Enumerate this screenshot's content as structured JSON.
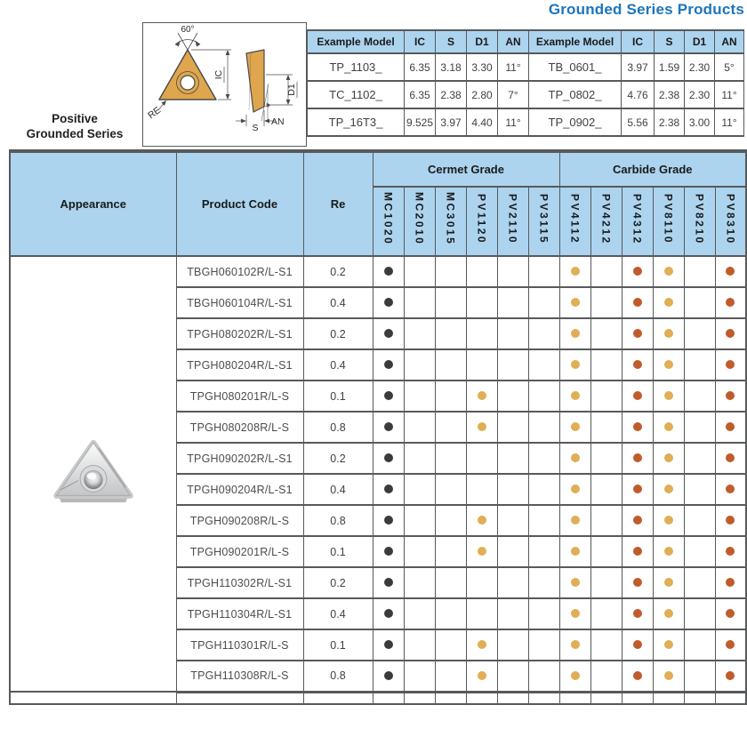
{
  "page": {
    "title": "Grounded Series Products"
  },
  "series_label": {
    "line1": "Positive",
    "line2": "Grounded Series"
  },
  "diagram": {
    "labels": {
      "angle": "60°",
      "ic": "IC",
      "re": "RE",
      "s": "S",
      "an": "AN",
      "d1": "D1"
    }
  },
  "example_tables": {
    "left": {
      "headers": [
        "Example Model",
        "IC",
        "S",
        "D1",
        "AN"
      ],
      "rows": [
        [
          "TP_1103_",
          "6.35",
          "3.18",
          "3.30",
          "11°"
        ],
        [
          "TC_1102_",
          "6.35",
          "2.38",
          "2.80",
          "7°"
        ],
        [
          "TP_16T3_",
          "9.525",
          "3.97",
          "4.40",
          "11°"
        ]
      ]
    },
    "right": {
      "headers": [
        "Example Model",
        "IC",
        "S",
        "D1",
        "AN"
      ],
      "rows": [
        [
          "TB_0601_",
          "3.97",
          "1.59",
          "2.30",
          "5°"
        ],
        [
          "TP_0802_",
          "4.76",
          "2.38",
          "2.30",
          "11°"
        ],
        [
          "TP_0902_",
          "5.56",
          "2.38",
          "3.00",
          "11°"
        ]
      ]
    }
  },
  "main_table": {
    "headers": {
      "appearance": "Appearance",
      "product_code": "Product Code",
      "re": "Re",
      "cermet_group": "Cermet Grade",
      "carbide_group": "Carbide Grade"
    },
    "cermet_columns": [
      "MC1020",
      "MC2010",
      "MC3015",
      "PV1120",
      "PV2110",
      "PV3115"
    ],
    "carbide_columns": [
      "PV4112",
      "PV4212",
      "PV4312",
      "PV8110",
      "PV8210",
      "PV8310"
    ],
    "rows": [
      {
        "code": "TBGH060102R/L-S1",
        "re": "0.2",
        "dots": {
          "MC1020": "black",
          "PV4112": "yellow",
          "PV4312": "orange",
          "PV8110": "yellow",
          "PV8310": "orange"
        }
      },
      {
        "code": "TBGH060104R/L-S1",
        "re": "0.4",
        "dots": {
          "MC1020": "black",
          "PV4112": "yellow",
          "PV4312": "orange",
          "PV8110": "yellow",
          "PV8310": "orange"
        }
      },
      {
        "code": "TPGH080202R/L-S1",
        "re": "0.2",
        "dots": {
          "MC1020": "black",
          "PV4112": "yellow",
          "PV4312": "orange",
          "PV8110": "yellow",
          "PV8310": "orange"
        }
      },
      {
        "code": "TPGH080204R/L-S1",
        "re": "0.4",
        "dots": {
          "MC1020": "black",
          "PV4112": "yellow",
          "PV4312": "orange",
          "PV8110": "yellow",
          "PV8310": "orange"
        }
      },
      {
        "code": "TPGH080201R/L-S",
        "re": "0.1",
        "dots": {
          "MC1020": "black",
          "PV1120": "yellow",
          "PV4112": "yellow",
          "PV4312": "orange",
          "PV8110": "yellow",
          "PV8310": "orange"
        }
      },
      {
        "code": "TPGH080208R/L-S",
        "re": "0.8",
        "dots": {
          "MC1020": "black",
          "PV1120": "yellow",
          "PV4112": "yellow",
          "PV4312": "orange",
          "PV8110": "yellow",
          "PV8310": "orange"
        }
      },
      {
        "code": "TPGH090202R/L-S1",
        "re": "0.2",
        "dots": {
          "MC1020": "black",
          "PV4112": "yellow",
          "PV4312": "orange",
          "PV8110": "yellow",
          "PV8310": "orange"
        }
      },
      {
        "code": "TPGH090204R/L-S1",
        "re": "0.4",
        "dots": {
          "MC1020": "black",
          "PV4112": "yellow",
          "PV4312": "orange",
          "PV8110": "yellow",
          "PV8310": "orange"
        }
      },
      {
        "code": "TPGH090208R/L-S",
        "re": "0.8",
        "dots": {
          "MC1020": "black",
          "PV1120": "yellow",
          "PV4112": "yellow",
          "PV4312": "orange",
          "PV8110": "yellow",
          "PV8310": "orange"
        }
      },
      {
        "code": "TPGH090201R/L-S",
        "re": "0.1",
        "dots": {
          "MC1020": "black",
          "PV1120": "yellow",
          "PV4112": "yellow",
          "PV4312": "orange",
          "PV8110": "yellow",
          "PV8310": "orange"
        }
      },
      {
        "code": "TPGH110302R/L-S1",
        "re": "0.2",
        "dots": {
          "MC1020": "black",
          "PV4112": "yellow",
          "PV4312": "orange",
          "PV8110": "yellow",
          "PV8310": "orange"
        }
      },
      {
        "code": "TPGH110304R/L-S1",
        "re": "0.4",
        "dots": {
          "MC1020": "black",
          "PV4112": "yellow",
          "PV4312": "orange",
          "PV8110": "yellow",
          "PV8310": "orange"
        }
      },
      {
        "code": "TPGH110301R/L-S",
        "re": "0.1",
        "dots": {
          "MC1020": "black",
          "PV1120": "yellow",
          "PV4112": "yellow",
          "PV4312": "orange",
          "PV8110": "yellow",
          "PV8310": "orange"
        }
      },
      {
        "code": "TPGH110308R/L-S",
        "re": "0.8",
        "dots": {
          "MC1020": "black",
          "PV1120": "yellow",
          "PV4112": "yellow",
          "PV4312": "orange",
          "PV8110": "yellow",
          "PV8310": "orange"
        }
      }
    ]
  },
  "colors": {
    "accent_blue": "#1b75bc",
    "header_blue": "#acd4ef",
    "border_dark": "#58595b",
    "tan": "#dfa64e",
    "dot_black": "#3b3b3d",
    "dot_yellow": "#dfae55",
    "dot_orange": "#c05b2b",
    "text_dark": "#231f20"
  }
}
